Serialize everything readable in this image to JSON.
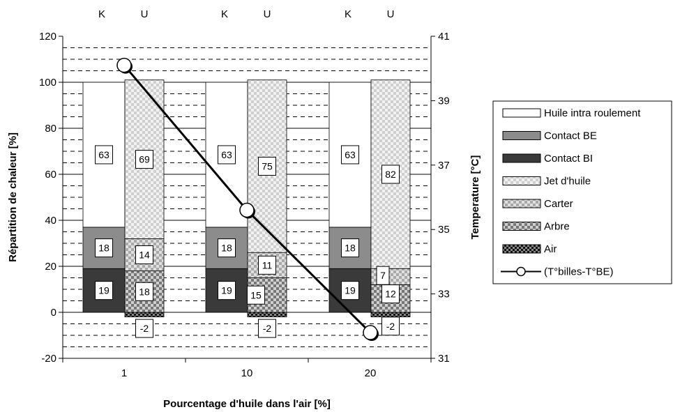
{
  "chart_data": {
    "type": "bar",
    "title": "",
    "xlabel": "Pourcentage d'huile dans l'air [%]",
    "ylabel": "Répartition de chaleur [%]",
    "y2label": "Temperature [°C]",
    "ylim": [
      -20,
      120
    ],
    "yticks": [
      "-20",
      "0",
      "20",
      "40",
      "60",
      "80",
      "100",
      "120"
    ],
    "y2lim": [
      31,
      41
    ],
    "y2ticks": [
      "31",
      "33",
      "35",
      "37",
      "39",
      "41"
    ],
    "categories": [
      "1",
      "10",
      "20"
    ],
    "column_labels": [
      "K",
      "U"
    ],
    "grid": "horizontal dashed",
    "legend_position": "right",
    "stacked_bars": [
      {
        "category": "1",
        "column": "K",
        "segments": {
          "Contact BI": 19,
          "Contact BE": 18,
          "Huile intra roulement": 63
        }
      },
      {
        "category": "1",
        "column": "U",
        "segments": {
          "Air": -2,
          "Arbre": 18,
          "Carter": 14,
          "Jet d'huile": 69
        }
      },
      {
        "category": "10",
        "column": "K",
        "segments": {
          "Contact BI": 19,
          "Contact BE": 18,
          "Huile intra roulement": 63
        }
      },
      {
        "category": "10",
        "column": "U",
        "segments": {
          "Air": -2,
          "Arbre": 15,
          "Carter": 11,
          "Jet d'huile": 75
        }
      },
      {
        "category": "20",
        "column": "K",
        "segments": {
          "Contact BI": 19,
          "Contact BE": 18,
          "Huile intra roulement": 63
        }
      },
      {
        "category": "20",
        "column": "U",
        "segments": {
          "Air": -2,
          "Arbre": 12,
          "Carter": 7,
          "Jet d'huile": 82
        }
      }
    ],
    "line_series": {
      "name": "(T°billes-T°BE)",
      "axis": "secondary",
      "x": [
        "1",
        "10",
        "20"
      ],
      "y": [
        40.1,
        35.6,
        31.8
      ]
    },
    "legend": [
      {
        "name": "Huile intra roulement",
        "color": "#ffffff"
      },
      {
        "name": "Contact BE",
        "color": "#8c8c8c"
      },
      {
        "name": "Contact BI",
        "color": "#3a3a3a"
      },
      {
        "name": "Jet d'huile",
        "color": "#e4e4e4"
      },
      {
        "name": "Carter",
        "color": "#c4c4c4"
      },
      {
        "name": "Arbre",
        "color": "#9c9c9c"
      },
      {
        "name": "Air",
        "color": "#404040"
      },
      {
        "name": "(T°billes-T°BE)",
        "color": "#000000"
      }
    ]
  }
}
